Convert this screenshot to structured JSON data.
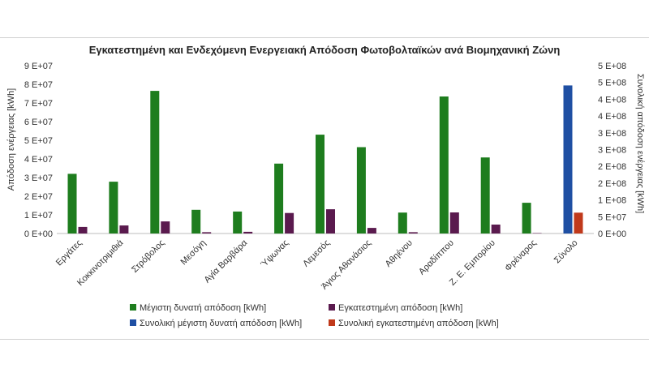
{
  "chart_data": {
    "type": "bar",
    "title": "Εγκατεστημένη και Ενδεχόμενη Ενεργειακή Απόδοση Φωτοβολταϊκών ανά Βιομηχανική Ζώνη",
    "ylabel_left": "Απόδοση ενέργειας [kWh]",
    "ylabel_right": "Συνολική απόδοση ενέργειας [kWh]",
    "ylim_left": [
      0,
      90000000
    ],
    "ylim_right": [
      0,
      500000000
    ],
    "yticks_left": [
      "0 E+00",
      "1 E+07",
      "2 E+07",
      "3 E+07",
      "4 E+07",
      "5 E+07",
      "6 E+07",
      "7 E+07",
      "8 E+07",
      "9 E+07"
    ],
    "yticks_right": [
      "0 E+00",
      "5 E+07",
      "1 E+08",
      "2 E+08",
      "2 E+08",
      "3 E+08",
      "3 E+08",
      "4 E+08",
      "4 E+08",
      "5 E+08",
      "5 E+08"
    ],
    "categories": [
      "Εργάτες",
      "Κοκκινοτριμιθιά",
      "Στρόβολος",
      "Μεσόγη",
      "Αγία Βαρβάρα",
      "Ύψωνας",
      "Λεμεσός",
      "Άγιος Αθανάσιος",
      "Αθηένου",
      "Αραδίππου",
      "Ζ. Ε. Εμπορίου",
      "Φρέναρος",
      "Σύνολο"
    ],
    "series": [
      {
        "name": "Μέγιστη δυνατή απόδοση [kWh]",
        "axis": "left",
        "color": "#1e7d1e",
        "values": [
          32000000,
          27800000,
          76500000,
          12700000,
          11800000,
          37500000,
          53000000,
          46300000,
          11200000,
          73500000,
          40800000,
          16500000,
          null
        ]
      },
      {
        "name": "Εγκατεστημένη απόδοση [kWh]",
        "axis": "left",
        "color": "#5a1a4e",
        "values": [
          3500000,
          4300000,
          6500000,
          700000,
          900000,
          11000000,
          13000000,
          3000000,
          700000,
          11300000,
          4800000,
          200000,
          null
        ]
      },
      {
        "name": "Συνολική μέγιστη δυνατή απόδοση [kWh]",
        "axis": "right",
        "color": "#1f4fa3",
        "values": [
          null,
          null,
          null,
          null,
          null,
          null,
          null,
          null,
          null,
          null,
          null,
          null,
          441000000
        ]
      },
      {
        "name": "Συνολική εγκατεστημένη απόδοση [kWh]",
        "axis": "right",
        "color": "#c0391b",
        "values": [
          null,
          null,
          null,
          null,
          null,
          null,
          null,
          null,
          null,
          null,
          null,
          null,
          62000000
        ]
      }
    ],
    "legend_position": "bottom",
    "grid": false
  }
}
